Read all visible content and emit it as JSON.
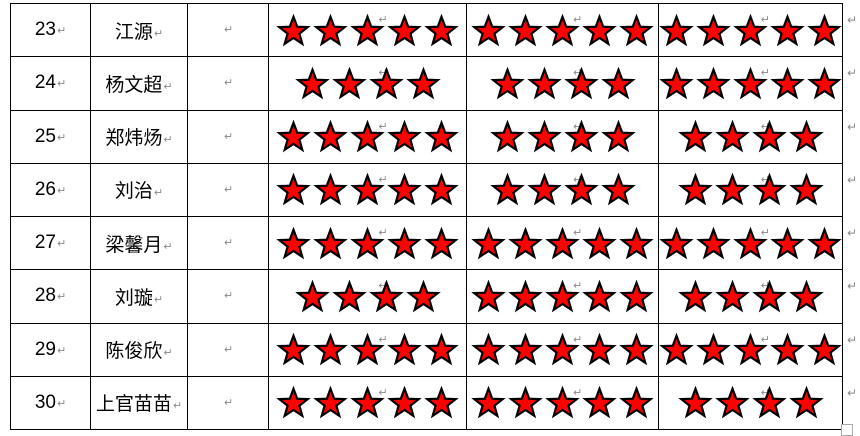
{
  "document": {
    "paragraph_mark": "↵",
    "star": {
      "fill_color": "#FF0000",
      "outline_color": "#000000",
      "icon": "star-icon"
    },
    "table": {
      "columns": [
        "row-number",
        "name",
        "blank",
        "rating-stars-1",
        "rating-stars-2",
        "rating-stars-3"
      ],
      "rows": [
        {
          "no": "23",
          "name": "江源",
          "ratings": [
            5,
            5,
            5
          ]
        },
        {
          "no": "24",
          "name": "杨文超",
          "ratings": [
            4,
            4,
            5
          ]
        },
        {
          "no": "25",
          "name": "郑炜炀",
          "ratings": [
            5,
            4,
            4
          ]
        },
        {
          "no": "26",
          "name": "刘治",
          "ratings": [
            5,
            4,
            4
          ]
        },
        {
          "no": "27",
          "name": "梁馨月",
          "ratings": [
            5,
            5,
            5
          ]
        },
        {
          "no": "28",
          "name": "刘璇",
          "ratings": [
            4,
            5,
            4
          ]
        },
        {
          "no": "29",
          "name": "陈俊欣",
          "ratings": [
            5,
            5,
            5
          ]
        },
        {
          "no": "30",
          "name": "上官苗苗",
          "ratings": [
            5,
            5,
            4
          ]
        }
      ]
    }
  }
}
